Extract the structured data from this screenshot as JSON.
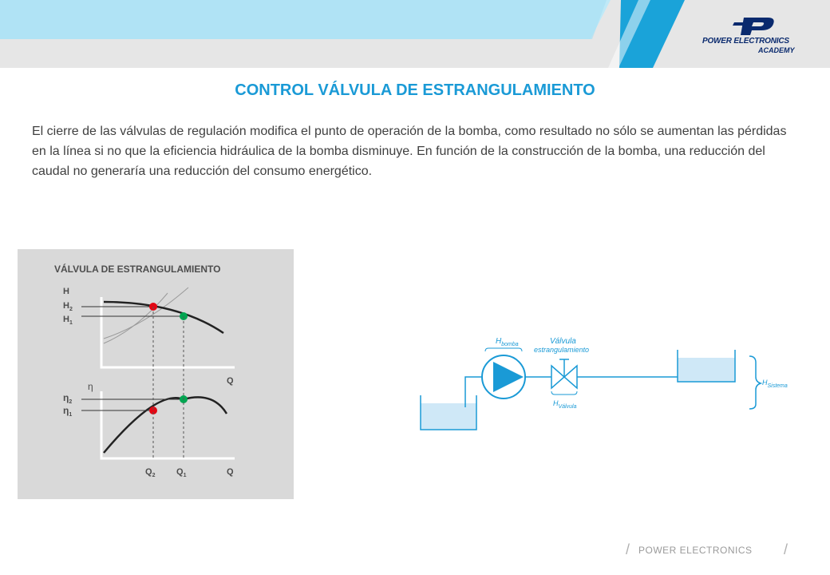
{
  "header": {
    "logo_line1": "POWER ELECTRONICS",
    "logo_line2": "ACADEMY",
    "accent_color": "#1a9ad6"
  },
  "title": "CONTROL VÁLVULA DE ESTRANGULAMIENTO",
  "body_text": "El cierre de las válvulas de regulación modifica el punto de operación de la bomba, como resultado no sólo se aumentan las pérdidas en la línea si no que la eficiencia hidráulica de la bomba disminuye. En función de la construcción de la bomba, una reducción del caudal no generaría una reducción del consumo energético.",
  "chart_panel": {
    "title": "VÁLVULA DE ESTRANGULAMIENTO",
    "top_chart": {
      "y_axis": "H",
      "y_mark_1": "H",
      "y_mark_1_sub": "2",
      "y_mark_2": "H",
      "y_mark_2_sub": "1",
      "x_axis": "Q"
    },
    "bottom_chart": {
      "y_axis": "η",
      "y_mark_1": "η",
      "y_mark_1_sub": "2",
      "y_mark_2": "η",
      "y_mark_2_sub": "1",
      "x_mark_1": "Q",
      "x_mark_1_sub": "2",
      "x_mark_2": "Q",
      "x_mark_2_sub": "1",
      "x_axis": "Q"
    },
    "colors": {
      "background": "#d9d9d9",
      "point_2": "#e30613",
      "point_1": "#00a651",
      "curve": "#222222"
    }
  },
  "diagram": {
    "pump_label": "H",
    "pump_label_sub": "bomba",
    "valve_label_line1": "Válvula",
    "valve_label_line2": "estrangulamiento",
    "valve_loss_label": "H",
    "valve_loss_label_sub": "Válvula",
    "system_label": "H",
    "system_label_sub": "Sistema",
    "colors": {
      "line": "#1a9ad6",
      "water": "#cfe8f7"
    }
  },
  "footer": {
    "brand": "POWER ELECTRONICS",
    "slash": "/"
  }
}
